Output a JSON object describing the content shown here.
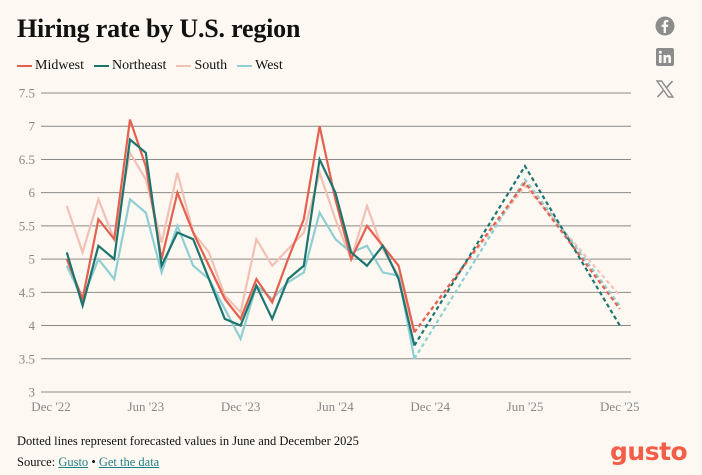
{
  "header": {
    "title": "Hiring rate by U.S. region"
  },
  "social": [
    {
      "name": "facebook-icon"
    },
    {
      "name": "linkedin-icon"
    },
    {
      "name": "x-twitter-icon"
    }
  ],
  "colors": {
    "Midwest": "#e5604e",
    "Northeast": "#1d7570",
    "South": "#f2c1b5",
    "West": "#8fcfd3",
    "grid": "#8a8a8a",
    "brand": "#f45d48",
    "link": "#1f7f86"
  },
  "footer": {
    "note": "Dotted lines represent forecasted values in June and December 2025",
    "source_label": "Source:",
    "source_link": "Gusto",
    "separator": "•",
    "data_link": "Get the data",
    "logo": "gusto"
  },
  "chart_data": {
    "type": "line",
    "title": "Hiring rate by U.S. region",
    "xlabel": "",
    "ylabel": "",
    "ylim": [
      3,
      7.5
    ],
    "yticks": [
      3,
      3.5,
      4,
      4.5,
      5,
      5.5,
      6,
      6.5,
      7,
      7.5
    ],
    "ytick_labels": [
      "3",
      "3.5",
      "4",
      "4.5",
      "5",
      "5.5",
      "6",
      "6.5",
      "7",
      "7.5"
    ],
    "xticks": [
      "Dec '22",
      "Jun '23",
      "Dec '23",
      "Jun '24",
      "Dec '24",
      "Jun '25",
      "Dec '25"
    ],
    "xtick_month_index": [
      0,
      6,
      12,
      18,
      24,
      30,
      36
    ],
    "x_months": [
      "Jan '23",
      "Feb '23",
      "Mar '23",
      "Apr '23",
      "May '23",
      "Jun '23",
      "Jul '23",
      "Aug '23",
      "Sep '23",
      "Oct '23",
      "Nov '23",
      "Dec '23",
      "Jan '24",
      "Feb '24",
      "Mar '24",
      "Apr '24",
      "May '24",
      "Jun '24",
      "Jul '24",
      "Aug '24",
      "Sep '24",
      "Oct '24",
      "Nov '24"
    ],
    "x_month_index_start": 1,
    "grid": true,
    "legend": "top-left",
    "legend_entries": [
      "Midwest",
      "Northeast",
      "South",
      "West"
    ],
    "series": [
      {
        "name": "Midwest",
        "values": [
          5.0,
          4.4,
          5.6,
          5.3,
          7.1,
          6.4,
          5.0,
          6.0,
          5.4,
          4.9,
          4.4,
          4.1,
          4.7,
          4.35,
          5.0,
          5.6,
          7.0,
          5.9,
          5.0,
          5.5,
          5.2,
          4.9,
          3.9
        ]
      },
      {
        "name": "Northeast",
        "values": [
          5.1,
          4.3,
          5.2,
          5.0,
          6.8,
          6.6,
          4.9,
          5.4,
          5.3,
          4.7,
          4.1,
          4.0,
          4.6,
          4.1,
          4.7,
          4.9,
          6.5,
          6.0,
          5.1,
          4.9,
          5.2,
          4.7,
          3.7
        ]
      },
      {
        "name": "South",
        "values": [
          5.8,
          5.1,
          5.9,
          5.3,
          6.6,
          6.2,
          5.25,
          6.3,
          5.4,
          5.1,
          4.45,
          4.2,
          5.3,
          4.9,
          5.15,
          5.4,
          6.3,
          5.6,
          5.0,
          5.8,
          5.15,
          4.75,
          3.9
        ]
      },
      {
        "name": "West",
        "values": [
          4.9,
          4.4,
          5.0,
          4.7,
          5.9,
          5.7,
          4.8,
          5.5,
          4.9,
          4.7,
          4.25,
          3.8,
          4.6,
          4.4,
          4.65,
          4.8,
          5.7,
          5.3,
          5.1,
          5.2,
          4.8,
          4.75,
          3.5
        ]
      }
    ],
    "forecast": {
      "x_months": [
        "Jun '25",
        "Dec '25"
      ],
      "x_month_index": [
        30,
        36
      ],
      "series": [
        {
          "name": "Midwest",
          "values": [
            6.15,
            4.25
          ]
        },
        {
          "name": "Northeast",
          "values": [
            6.4,
            4.0
          ]
        },
        {
          "name": "South",
          "values": [
            6.1,
            4.45
          ]
        },
        {
          "name": "West",
          "values": [
            6.2,
            4.3
          ]
        }
      ]
    }
  }
}
